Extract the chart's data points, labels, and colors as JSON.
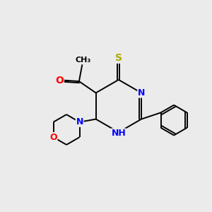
{
  "background_color": "#ebebeb",
  "bond_color": "#000000",
  "atom_colors": {
    "N": "#0000ff",
    "O": "#ff0000",
    "S": "#aaaa00",
    "C": "#000000"
  },
  "figsize": [
    3.0,
    3.0
  ],
  "dpi": 100
}
